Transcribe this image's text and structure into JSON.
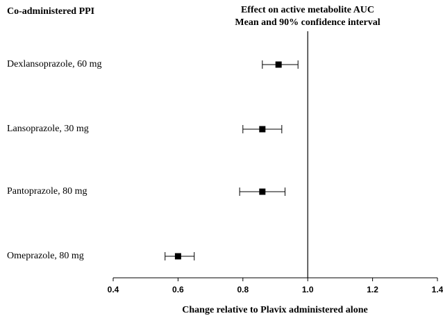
{
  "chart_data": {
    "type": "forest",
    "column_header": "Co-administered PPI",
    "title": "Effect on active metabolite AUC",
    "subtitle": "Mean and 90% confidence interval",
    "xlabel": "Change relative to Plavix administered alone",
    "categories": [
      "Dexlansoprazole, 60 mg",
      "Lansoprazole, 30 mg",
      "Pantoprazole, 80 mg",
      "Omeprazole, 80 mg"
    ],
    "values": [
      0.91,
      0.86,
      0.86,
      0.6
    ],
    "ci_low": [
      0.86,
      0.8,
      0.79,
      0.56
    ],
    "ci_high": [
      0.97,
      0.92,
      0.93,
      0.65
    ],
    "xlim": [
      0.4,
      1.4
    ],
    "xticks": [
      0.4,
      0.6,
      0.8,
      {
        "value": 1,
        "label": "1.0"
      },
      1.2,
      1.4
    ],
    "reference_line": 1,
    "color": "#000000"
  }
}
